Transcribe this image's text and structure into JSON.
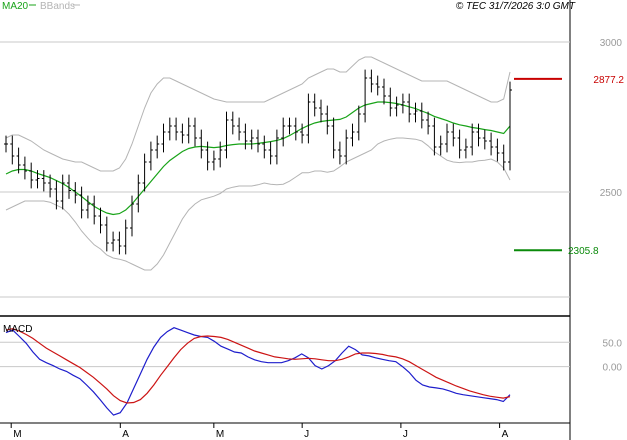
{
  "chart_data": {
    "type": "line",
    "legend": [
      "MA20",
      "BBands"
    ],
    "header_right": "© TEC 31/7/2026 3:0 GMT",
    "price_panel": {
      "ylim": [
        2100,
        3100
      ],
      "y_ticks": [
        {
          "value": 3000,
          "label": "3000"
        },
        {
          "value": 2500,
          "label": "2500"
        }
      ],
      "resistance": {
        "value": 2877,
        "label": "2877.2"
      },
      "support": {
        "value": 2306,
        "label": "2305.8"
      },
      "close": [
        2660,
        2620,
        2590,
        2570,
        2540,
        2545,
        2530,
        2510,
        2470,
        2530,
        2505,
        2490,
        2440,
        2460,
        2420,
        2390,
        2330,
        2340,
        2320,
        2380,
        2460,
        2530,
        2600,
        2640,
        2660,
        2700,
        2720,
        2700,
        2690,
        2720,
        2680,
        2640,
        2600,
        2610,
        2640,
        2740,
        2720,
        2700,
        2670,
        2680,
        2660,
        2640,
        2620,
        2680,
        2720,
        2720,
        2700,
        2690,
        2800,
        2780,
        2760,
        2720,
        2640,
        2620,
        2680,
        2700,
        2760,
        2880,
        2860,
        2850,
        2820,
        2780,
        2790,
        2800,
        2760,
        2770,
        2740,
        2720,
        2650,
        2660,
        2700,
        2680,
        2640,
        2650,
        2700,
        2680,
        2670,
        2650,
        2630,
        2600,
        2840
      ],
      "ma20": [
        2560,
        2570,
        2575,
        2575,
        2570,
        2562,
        2555,
        2548,
        2538,
        2528,
        2515,
        2500,
        2485,
        2468,
        2452,
        2440,
        2430,
        2425,
        2428,
        2440,
        2460,
        2485,
        2510,
        2535,
        2560,
        2585,
        2605,
        2620,
        2635,
        2645,
        2650,
        2652,
        2650,
        2648,
        2650,
        2655,
        2658,
        2660,
        2660,
        2660,
        2662,
        2665,
        2668,
        2672,
        2678,
        2688,
        2700,
        2712,
        2722,
        2730,
        2735,
        2738,
        2740,
        2742,
        2750,
        2765,
        2780,
        2790,
        2795,
        2800,
        2800,
        2798,
        2795,
        2790,
        2784,
        2778,
        2770,
        2762,
        2752,
        2745,
        2738,
        2730,
        2724,
        2720,
        2715,
        2712,
        2708,
        2705,
        2700,
        2695,
        2720
      ],
      "bb_upper": [
        2680,
        2690,
        2690,
        2680,
        2670,
        2655,
        2640,
        2630,
        2620,
        2610,
        2605,
        2600,
        2600,
        2590,
        2580,
        2570,
        2570,
        2570,
        2580,
        2610,
        2660,
        2720,
        2780,
        2830,
        2860,
        2880,
        2880,
        2870,
        2860,
        2850,
        2840,
        2830,
        2820,
        2810,
        2805,
        2800,
        2800,
        2800,
        2800,
        2800,
        2800,
        2800,
        2810,
        2820,
        2830,
        2840,
        2850,
        2860,
        2880,
        2890,
        2900,
        2910,
        2910,
        2900,
        2900,
        2920,
        2940,
        2950,
        2950,
        2940,
        2930,
        2920,
        2910,
        2900,
        2890,
        2880,
        2870,
        2870,
        2870,
        2870,
        2870,
        2860,
        2850,
        2840,
        2830,
        2820,
        2810,
        2800,
        2800,
        2810,
        2900
      ],
      "bb_lower": [
        2440,
        2450,
        2460,
        2470,
        2470,
        2470,
        2470,
        2466,
        2456,
        2446,
        2426,
        2400,
        2370,
        2346,
        2324,
        2310,
        2290,
        2280,
        2276,
        2270,
        2260,
        2250,
        2240,
        2240,
        2260,
        2290,
        2330,
        2370,
        2410,
        2440,
        2460,
        2474,
        2480,
        2486,
        2495,
        2510,
        2516,
        2520,
        2520,
        2520,
        2524,
        2530,
        2526,
        2524,
        2526,
        2536,
        2550,
        2564,
        2564,
        2570,
        2570,
        2566,
        2570,
        2584,
        2600,
        2610,
        2620,
        2630,
        2640,
        2660,
        2670,
        2676,
        2680,
        2680,
        2678,
        2676,
        2670,
        2654,
        2634,
        2620,
        2606,
        2600,
        2598,
        2600,
        2600,
        2604,
        2606,
        2610,
        2600,
        2580,
        2540
      ]
    },
    "macd_panel": {
      "ylim": [
        -110,
        100
      ],
      "y_ticks": [
        {
          "value": 50,
          "label": "50.0"
        },
        {
          "value": 0,
          "label": "0.00"
        }
      ],
      "title": "MACD",
      "macd": [
        70,
        75,
        62,
        48,
        30,
        15,
        8,
        2,
        -5,
        -10,
        -18,
        -25,
        -38,
        -52,
        -68,
        -85,
        -100,
        -95,
        -75,
        -45,
        -15,
        15,
        40,
        60,
        72,
        80,
        75,
        70,
        65,
        62,
        60,
        52,
        42,
        36,
        30,
        28,
        20,
        14,
        10,
        8,
        8,
        8,
        12,
        18,
        26,
        18,
        2,
        -5,
        2,
        12,
        28,
        42,
        35,
        24,
        22,
        18,
        15,
        12,
        10,
        0,
        -12,
        -28,
        -38,
        -42,
        -44,
        -46,
        -50,
        -55,
        -58,
        -60,
        -62,
        -64,
        -66,
        -68,
        -72,
        -58
      ],
      "signal": [
        75,
        78,
        73,
        66,
        58,
        48,
        38,
        30,
        22,
        14,
        6,
        -2,
        -12,
        -22,
        -34,
        -46,
        -60,
        -70,
        -75,
        -74,
        -68,
        -55,
        -38,
        -18,
        0,
        18,
        35,
        48,
        58,
        62,
        63,
        62,
        60,
        56,
        50,
        44,
        38,
        32,
        28,
        24,
        20,
        18,
        16,
        15,
        16,
        17,
        16,
        14,
        12,
        12,
        15,
        20,
        26,
        28,
        28,
        27,
        25,
        22,
        20,
        16,
        10,
        2,
        -6,
        -14,
        -22,
        -28,
        -34,
        -40,
        -45,
        -50,
        -54,
        -58,
        -61,
        -63,
        -65,
        -62
      ]
    },
    "x_labels": [
      {
        "index": 1,
        "label": "M"
      },
      {
        "index": 22,
        "label": "A"
      },
      {
        "index": 40,
        "label": "M"
      },
      {
        "index": 57,
        "label": "J"
      },
      {
        "index": 76,
        "label": "J"
      },
      {
        "index": 95,
        "label": "A"
      }
    ],
    "colors": {
      "ma20": "#18a318",
      "bbands": "#b4b4b4",
      "macd": "#1e1ecc",
      "signal": "#cc1414",
      "resistance": "#c80000",
      "support": "#0a8a0a",
      "ohlc": "#000000"
    }
  }
}
